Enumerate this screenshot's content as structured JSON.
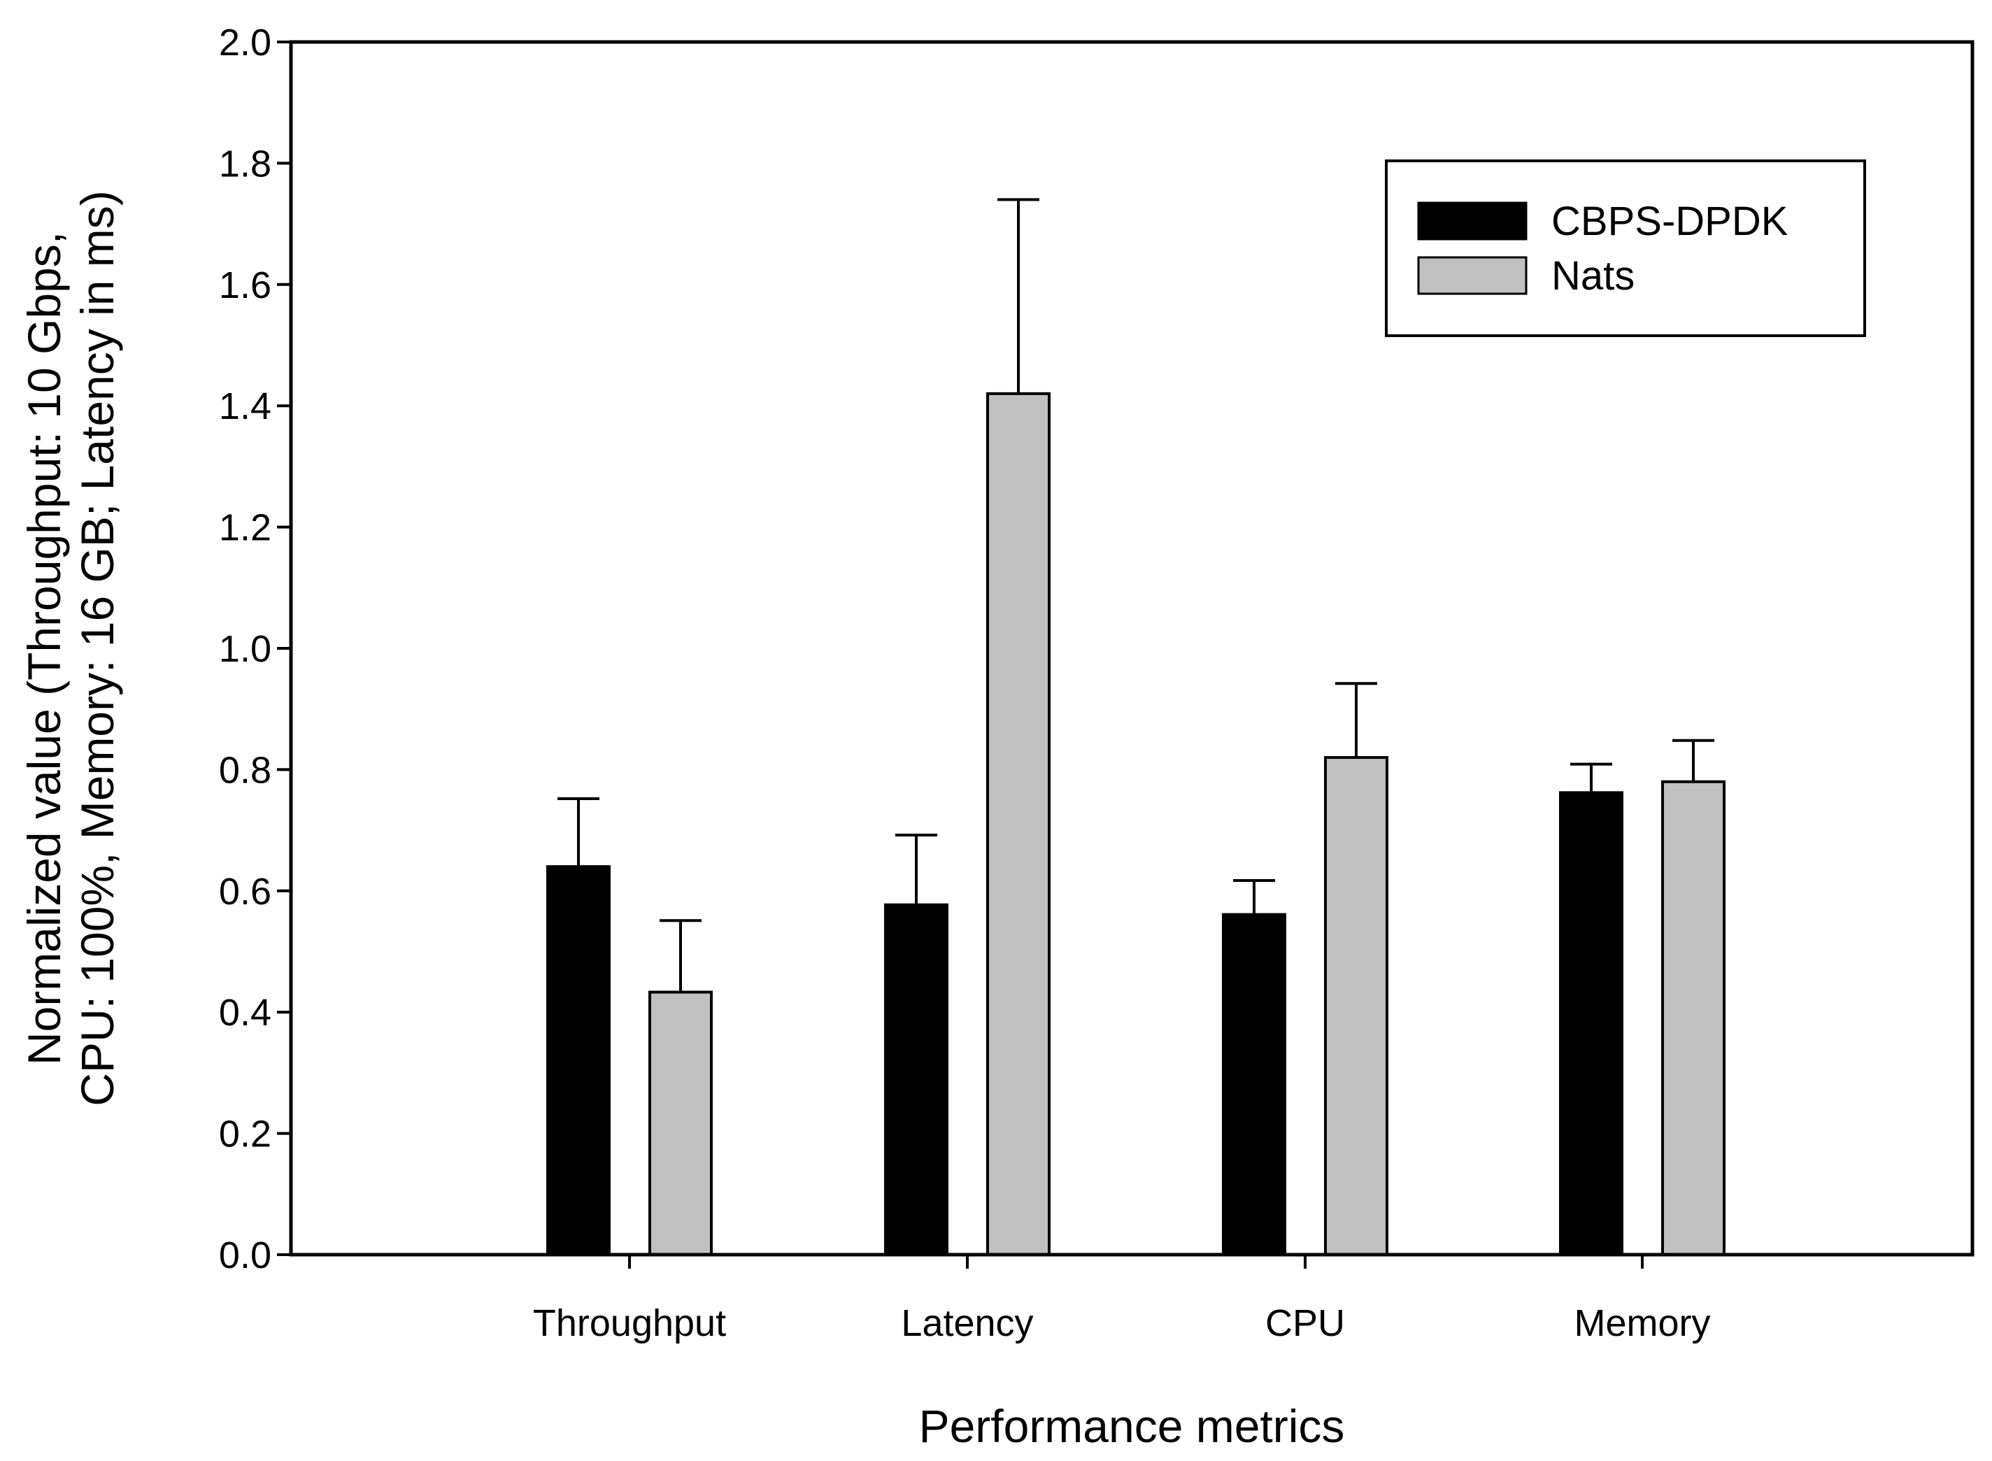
{
  "chart_data": {
    "type": "bar",
    "title": "",
    "xlabel": "Performance metrics",
    "ylabel_lines": [
      "Normalized value (Throughput: 10 Gbps,",
      "CPU: 100%, Memory: 16 GB; Latency in ms)"
    ],
    "categories": [
      "Throughput",
      "Latency",
      "CPU",
      "Memory"
    ],
    "ylim": [
      0,
      2.0
    ],
    "yticks": [
      "0.0",
      "0.2",
      "0.4",
      "0.6",
      "0.8",
      "1.0",
      "1.2",
      "1.4",
      "1.6",
      "1.8",
      "2.0"
    ],
    "grid": false,
    "legend_position": "top-right",
    "series": [
      {
        "name": "CBPS-DPDK",
        "color": "#000000",
        "values": [
          0.64,
          0.577,
          0.561,
          0.762
        ],
        "errors": [
          0.112,
          0.115,
          0.056,
          0.047
        ]
      },
      {
        "name": "Nats",
        "color": "#c0c0c0",
        "values": [
          0.433,
          1.42,
          0.82,
          0.78
        ],
        "errors": [
          0.118,
          0.32,
          0.122,
          0.068
        ]
      }
    ]
  }
}
